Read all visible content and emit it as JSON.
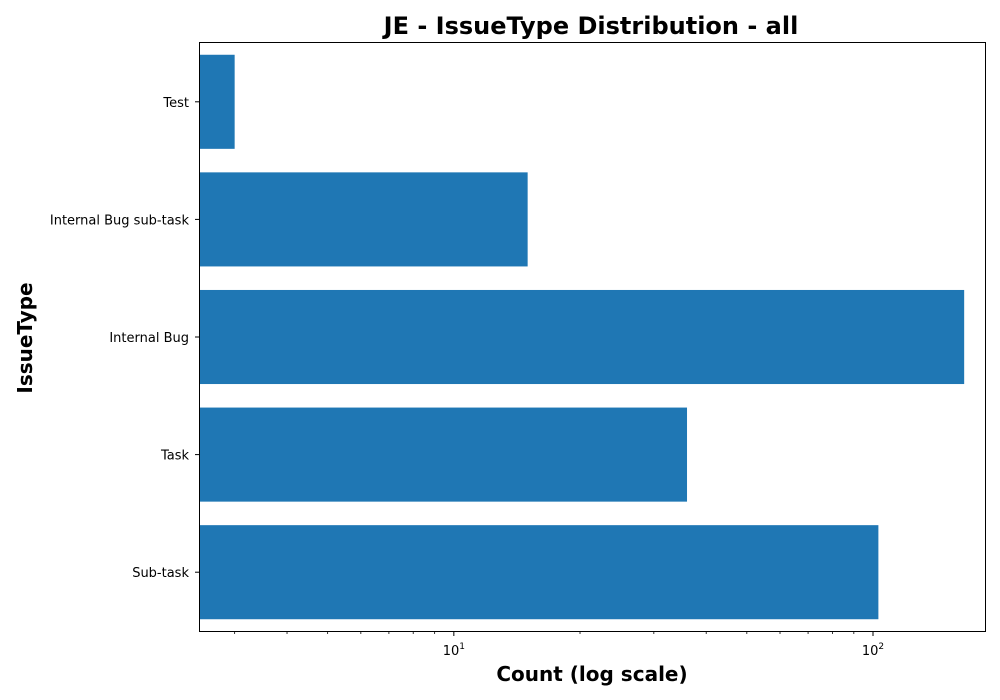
{
  "chart_data": {
    "type": "bar",
    "orientation": "horizontal",
    "title": "JE - IssueType Distribution - all",
    "xlabel": "Count (log scale)",
    "ylabel": "IssueType",
    "x_scale": "log",
    "xlim": [
      2.48,
      185
    ],
    "categories": [
      "Sub-task",
      "Task",
      "Internal Bug",
      "Internal Bug sub-task",
      "Test"
    ],
    "values": [
      103,
      36,
      165,
      15,
      3
    ],
    "color": "#1f77b4",
    "x_ticks": [
      {
        "value": 10,
        "base": "10",
        "exp": "1"
      },
      {
        "value": 100,
        "base": "10",
        "exp": "2"
      }
    ],
    "grid": false,
    "legend": "none"
  }
}
